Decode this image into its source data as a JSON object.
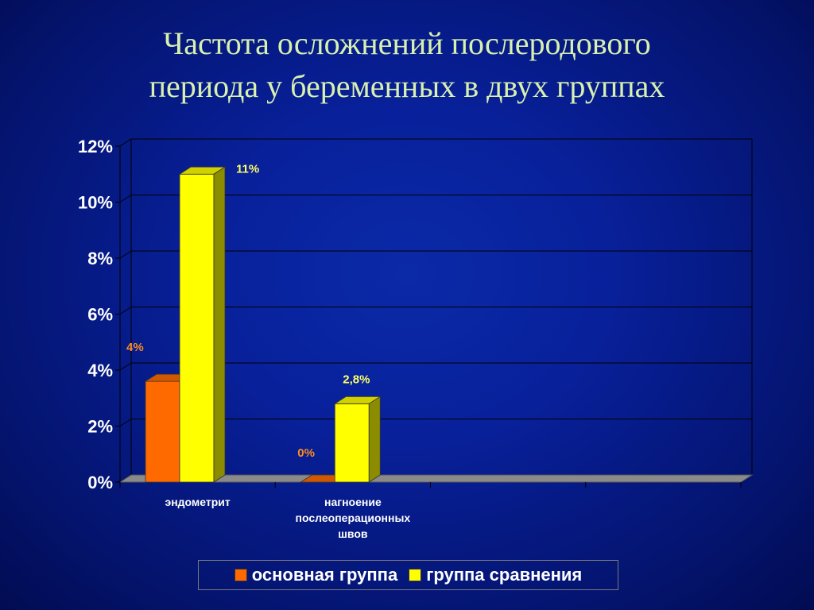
{
  "title_lines": [
    "Частота осложнений послеродового",
    "периода у беременных в двух группах"
  ],
  "colors": {
    "series1": "#ff6a00",
    "series2": "#ffff00",
    "label_series1": "#ff8c1a",
    "label_series2": "#ffff66",
    "grid": "#000000",
    "floor": "#8a8a8a"
  },
  "chart_data": {
    "type": "bar",
    "title": "Частота осложнений послеродового периода у беременных в двух группах",
    "categories": [
      "эндометрит",
      "нагноение послеоперационных швов",
      "",
      ""
    ],
    "category_lines": [
      [
        "эндометрит"
      ],
      [
        "нагноение",
        "послеоперационных",
        "швов"
      ],
      [],
      []
    ],
    "series": [
      {
        "name": "основная группа",
        "values": [
          3.6,
          0,
          null,
          null
        ],
        "labels": [
          "4%",
          "0%",
          "",
          ""
        ]
      },
      {
        "name": "группа сравнения",
        "values": [
          11,
          2.8,
          null,
          null
        ],
        "labels": [
          "11%",
          "2,8%",
          "",
          ""
        ]
      }
    ],
    "ylim": [
      0,
      12
    ],
    "yticks": [
      0,
      2,
      4,
      6,
      8,
      10,
      12
    ],
    "ytick_labels": [
      "0%",
      "2%",
      "4%",
      "6%",
      "8%",
      "10%",
      "12%"
    ],
    "grid": true,
    "legend_position": "bottom"
  }
}
